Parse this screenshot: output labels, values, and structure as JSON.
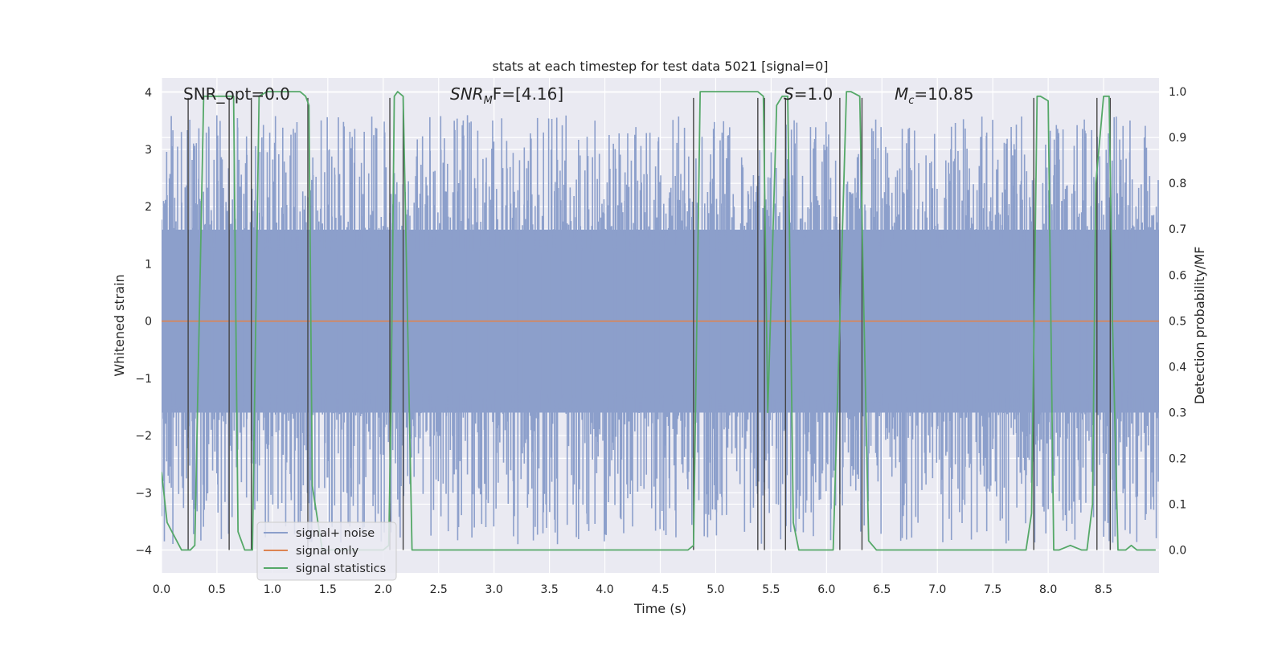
{
  "chart_data": {
    "type": "line",
    "title": "stats at each timestep for test data 5021 [signal=0]",
    "xlabel": "Time (s)",
    "ylabel_left": "Whitened strain",
    "ylabel_right": "Detection probability/MF",
    "xlim": [
      0.0,
      9.0
    ],
    "ylim_left": [
      -4.4,
      4.25
    ],
    "ylim_right": [
      -0.05,
      1.03
    ],
    "x_ticks": [
      0.0,
      0.5,
      1.0,
      1.5,
      2.0,
      2.5,
      3.0,
      3.5,
      4.0,
      4.5,
      5.0,
      5.5,
      6.0,
      6.5,
      7.0,
      7.5,
      8.0,
      8.5
    ],
    "x_tick_labels": [
      "0.0",
      "0.5",
      "1.0",
      "1.5",
      "2.0",
      "2.5",
      "3.0",
      "3.5",
      "4.0",
      "4.5",
      "5.0",
      "5.5",
      "6.0",
      "6.5",
      "7.0",
      "7.5",
      "8.0",
      "8.5"
    ],
    "y_left_ticks": [
      -4,
      -3,
      -2,
      -1,
      0,
      1,
      2,
      3,
      4
    ],
    "y_left_tick_labels": [
      "−4",
      "−3",
      "−2",
      "−1",
      "0",
      "1",
      "2",
      "3",
      "4"
    ],
    "y_right_ticks": [
      0.0,
      0.1,
      0.2,
      0.3,
      0.4,
      0.5,
      0.6,
      0.7,
      0.8,
      0.9,
      1.0
    ],
    "y_right_tick_labels": [
      "0.0",
      "0.1",
      "0.2",
      "0.3",
      "0.4",
      "0.5",
      "0.6",
      "0.7",
      "0.8",
      "0.9",
      "1.0"
    ],
    "annotations": {
      "snr_opt": "SNR_opt=0.0",
      "snr_mf_base": "SNR",
      "snr_mf_sub": "M",
      "snr_mf_rest": "F=[4.16]",
      "s_italic": "S",
      "s_rest": "=1.0",
      "mc_base": "M",
      "mc_sub": "c",
      "mc_rest": "=10.85"
    },
    "legend": [
      "signal+ noise",
      "signal only",
      "signal statistics"
    ],
    "colors": {
      "noise": "#8c9fcb",
      "signal_only": "#dd8452",
      "statistics": "#55a868",
      "vlines": "#444444",
      "background": "#eaeaf2",
      "grid": "#ffffff"
    },
    "noise_envelope": {
      "core_low": -1.6,
      "core_high": 1.6,
      "spike_max": 3.6,
      "spike_min": -3.9,
      "spike_count": 1100
    },
    "signal_only": {
      "x": [
        0.0,
        9.0
      ],
      "y": [
        0.0,
        0.0
      ]
    },
    "series": [
      {
        "name": "signal statistics",
        "axis": "right",
        "x": [
          0.0,
          0.05,
          0.18,
          0.24,
          0.26,
          0.3,
          0.38,
          0.5,
          0.6,
          0.62,
          0.65,
          0.69,
          0.75,
          0.82,
          0.85,
          0.88,
          0.95,
          1.1,
          1.25,
          1.3,
          1.33,
          1.36,
          1.45,
          1.6,
          1.8,
          2.0,
          2.05,
          2.07,
          2.1,
          2.13,
          2.18,
          2.22,
          2.26,
          2.5,
          3.0,
          3.5,
          4.0,
          4.5,
          4.75,
          4.8,
          4.83,
          4.86,
          4.9,
          5.0,
          5.3,
          5.38,
          5.43,
          5.47,
          5.55,
          5.6,
          5.65,
          5.7,
          5.75,
          5.85,
          6.0,
          6.06,
          6.12,
          6.18,
          6.22,
          6.3,
          6.33,
          6.38,
          6.45,
          6.6,
          7.0,
          7.5,
          7.8,
          7.85,
          7.9,
          7.93,
          8.0,
          8.05,
          8.1,
          8.2,
          8.3,
          8.35,
          8.4,
          8.43,
          8.5,
          8.55,
          8.58,
          8.63,
          8.7,
          8.75,
          8.8,
          8.85,
          8.9,
          8.97
        ],
        "y": [
          0.17,
          0.06,
          0.0,
          0.0,
          0.0,
          0.01,
          0.99,
          0.99,
          0.99,
          0.99,
          0.99,
          0.04,
          0.0,
          0.0,
          0.5,
          0.99,
          1.0,
          1.0,
          1.0,
          0.99,
          0.97,
          0.14,
          0.0,
          0.0,
          0.0,
          0.0,
          0.01,
          0.3,
          0.99,
          1.0,
          0.99,
          0.5,
          0.0,
          0.0,
          0.0,
          0.0,
          0.0,
          0.0,
          0.0,
          0.01,
          0.5,
          1.0,
          1.0,
          1.0,
          1.0,
          1.0,
          0.99,
          0.3,
          0.97,
          0.99,
          0.99,
          0.06,
          0.0,
          0.0,
          0.0,
          0.0,
          0.5,
          1.0,
          1.0,
          0.99,
          0.6,
          0.02,
          0.0,
          0.0,
          0.0,
          0.0,
          0.0,
          0.08,
          0.99,
          0.99,
          0.98,
          0.0,
          0.0,
          0.01,
          0.0,
          0.0,
          0.1,
          0.8,
          0.99,
          0.99,
          0.5,
          0.0,
          0.0,
          0.01,
          0.0,
          0.0,
          0.0,
          0.0
        ]
      }
    ],
    "vertical_lines": [
      {
        "x": 0.24,
        "y0": -4.0,
        "y1": 3.9
      },
      {
        "x": 0.61,
        "y0": -4.0,
        "y1": 3.9
      },
      {
        "x": 0.81,
        "y0": -4.0,
        "y1": 3.9
      },
      {
        "x": 1.32,
        "y0": -4.0,
        "y1": 3.9
      },
      {
        "x": 2.06,
        "y0": -4.0,
        "y1": 3.9
      },
      {
        "x": 2.18,
        "y0": -4.0,
        "y1": 3.9
      },
      {
        "x": 4.8,
        "y0": -4.0,
        "y1": 3.9
      },
      {
        "x": 5.38,
        "y0": -4.0,
        "y1": 3.9
      },
      {
        "x": 5.44,
        "y0": -4.0,
        "y1": 3.9
      },
      {
        "x": 5.63,
        "y0": -4.0,
        "y1": 3.9
      },
      {
        "x": 6.12,
        "y0": -4.0,
        "y1": 3.9
      },
      {
        "x": 6.32,
        "y0": -4.0,
        "y1": 3.9
      },
      {
        "x": 7.87,
        "y0": -4.0,
        "y1": 3.9
      },
      {
        "x": 8.44,
        "y0": -4.0,
        "y1": 3.9
      },
      {
        "x": 8.56,
        "y0": -4.0,
        "y1": 3.9
      }
    ]
  }
}
